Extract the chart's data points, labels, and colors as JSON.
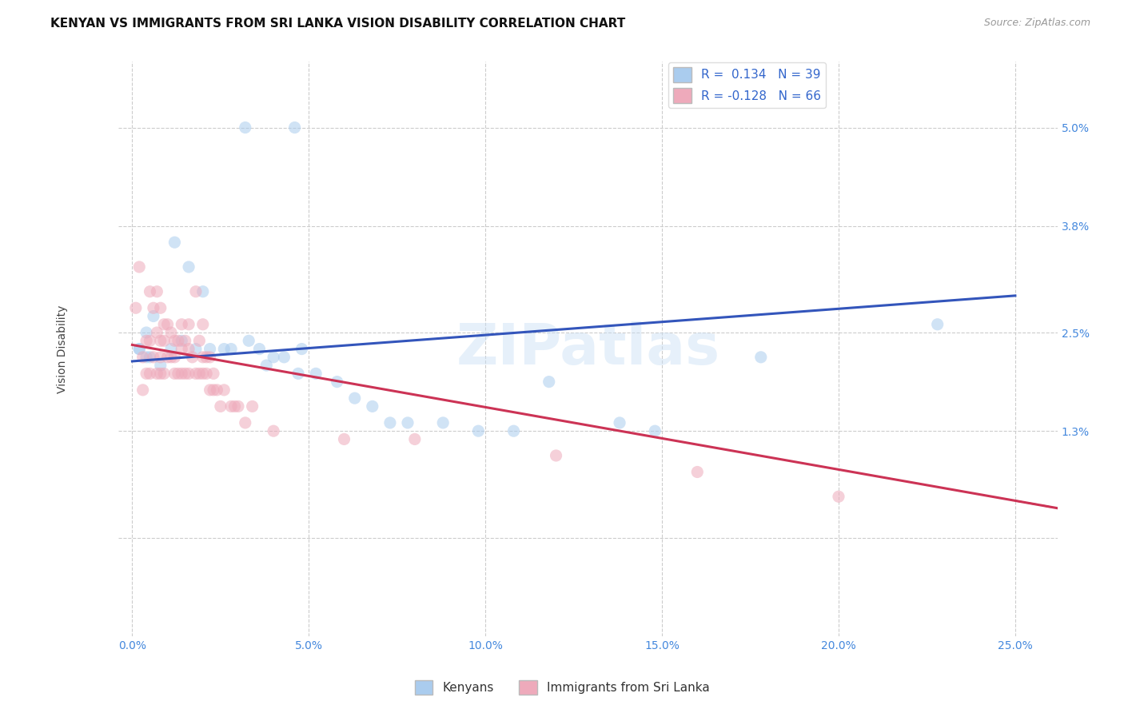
{
  "title": "KENYAN VS IMMIGRANTS FROM SRI LANKA VISION DISABILITY CORRELATION CHART",
  "source": "Source: ZipAtlas.com",
  "xlabel_ticks": [
    "0.0%",
    "5.0%",
    "10.0%",
    "15.0%",
    "20.0%",
    "25.0%"
  ],
  "xlabel_vals": [
    0.0,
    0.05,
    0.1,
    0.15,
    0.2,
    0.25
  ],
  "ylabel_ticks": [
    "",
    "1.3%",
    "2.5%",
    "3.8%",
    "5.0%"
  ],
  "ylabel_vals": [
    0.0,
    0.013,
    0.025,
    0.038,
    0.05
  ],
  "ylabel_label": "Vision Disability",
  "xlim": [
    -0.004,
    0.262
  ],
  "ylim": [
    -0.012,
    0.058
  ],
  "watermark": "ZIPatlas",
  "legend_blue_label": "R =  0.134   N = 39",
  "legend_pink_label": "R = -0.128   N = 66",
  "legend_label_blue": "Kenyans",
  "legend_label_pink": "Immigrants from Sri Lanka",
  "blue_color": "#aaccee",
  "pink_color": "#eeaabb",
  "line_blue": "#3355bb",
  "line_pink": "#cc3355",
  "blue_scatter_x": [
    0.032,
    0.046,
    0.012,
    0.016,
    0.02,
    0.006,
    0.004,
    0.002,
    0.005,
    0.008,
    0.011,
    0.014,
    0.018,
    0.022,
    0.026,
    0.028,
    0.033,
    0.036,
    0.038,
    0.04,
    0.043,
    0.047,
    0.048,
    0.052,
    0.058,
    0.063,
    0.068,
    0.073,
    0.078,
    0.088,
    0.098,
    0.108,
    0.118,
    0.138,
    0.148,
    0.002,
    0.004,
    0.228,
    0.178
  ],
  "blue_scatter_y": [
    0.05,
    0.05,
    0.036,
    0.033,
    0.03,
    0.027,
    0.025,
    0.023,
    0.022,
    0.021,
    0.023,
    0.024,
    0.023,
    0.023,
    0.023,
    0.023,
    0.024,
    0.023,
    0.021,
    0.022,
    0.022,
    0.02,
    0.023,
    0.02,
    0.019,
    0.017,
    0.016,
    0.014,
    0.014,
    0.014,
    0.013,
    0.013,
    0.019,
    0.014,
    0.013,
    0.023,
    0.022,
    0.026,
    0.022
  ],
  "pink_scatter_x": [
    0.001,
    0.002,
    0.003,
    0.003,
    0.004,
    0.004,
    0.005,
    0.005,
    0.005,
    0.006,
    0.006,
    0.007,
    0.007,
    0.007,
    0.008,
    0.008,
    0.008,
    0.008,
    0.009,
    0.009,
    0.009,
    0.01,
    0.01,
    0.011,
    0.011,
    0.012,
    0.012,
    0.012,
    0.013,
    0.013,
    0.014,
    0.014,
    0.014,
    0.015,
    0.015,
    0.016,
    0.016,
    0.016,
    0.017,
    0.018,
    0.018,
    0.019,
    0.019,
    0.02,
    0.02,
    0.02,
    0.021,
    0.021,
    0.022,
    0.022,
    0.023,
    0.023,
    0.024,
    0.025,
    0.026,
    0.028,
    0.029,
    0.03,
    0.032,
    0.034,
    0.04,
    0.06,
    0.08,
    0.12,
    0.16,
    0.2
  ],
  "pink_scatter_y": [
    0.028,
    0.033,
    0.022,
    0.018,
    0.024,
    0.02,
    0.03,
    0.024,
    0.02,
    0.028,
    0.022,
    0.03,
    0.025,
    0.02,
    0.028,
    0.024,
    0.022,
    0.02,
    0.026,
    0.024,
    0.02,
    0.026,
    0.022,
    0.025,
    0.022,
    0.024,
    0.022,
    0.02,
    0.024,
    0.02,
    0.026,
    0.023,
    0.02,
    0.024,
    0.02,
    0.026,
    0.023,
    0.02,
    0.022,
    0.03,
    0.02,
    0.024,
    0.02,
    0.022,
    0.026,
    0.02,
    0.022,
    0.02,
    0.022,
    0.018,
    0.02,
    0.018,
    0.018,
    0.016,
    0.018,
    0.016,
    0.016,
    0.016,
    0.014,
    0.016,
    0.013,
    0.012,
    0.012,
    0.01,
    0.008,
    0.005
  ],
  "blue_line_x0": 0.0,
  "blue_line_x1": 0.25,
  "blue_line_y0": 0.0215,
  "blue_line_y1": 0.0295,
  "pink_line_x0": 0.0,
  "pink_line_x1": 0.25,
  "pink_line_y0": 0.0235,
  "pink_line_y1": 0.0045,
  "grid_color": "#cccccc",
  "background_color": "#ffffff",
  "title_fontsize": 11,
  "label_fontsize": 10,
  "tick_fontsize": 10,
  "scatter_size": 120,
  "scatter_alpha": 0.55
}
